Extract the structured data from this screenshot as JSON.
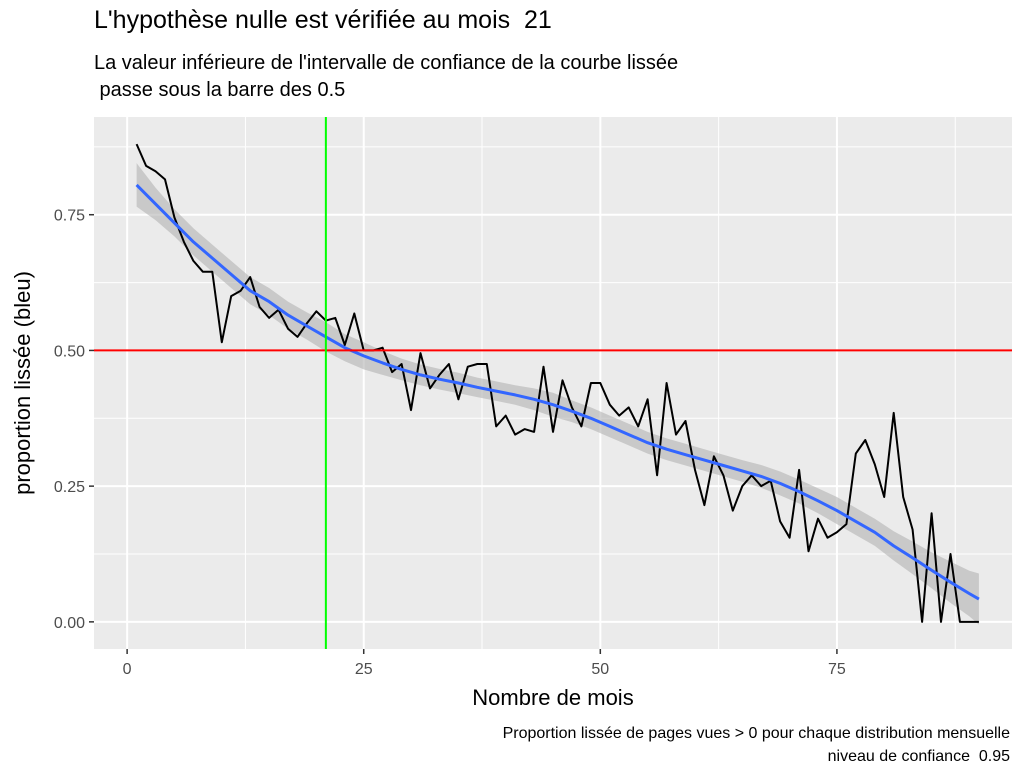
{
  "title": "L'hypothèse nulle est vérifiée au mois  21",
  "subtitle_line1": "La valeur inférieure de l'intervalle de confiance de la courbe lissée",
  "subtitle_line2": " passe sous la barre des 0.5",
  "caption_line1": "Proportion lissée de pages vues > 0 pour chaque distribution mensuelle",
  "caption_line2": "niveau de confiance  0.95",
  "colors": {
    "panel_bg": "#EBEBEB",
    "grid": "#FFFFFF",
    "raw_line": "#000000",
    "smooth_line": "#3366FF",
    "ribbon": "#B3B3B3",
    "hline": "#FF0000",
    "vline": "#00FF00",
    "tick_text": "#4D4D4D"
  },
  "chart_data": {
    "type": "line",
    "xlabel": "Nombre de mois",
    "ylabel": "proportion lissée (bleu)",
    "xlim": [
      -3.5,
      93.5
    ],
    "ylim": [
      -0.05,
      0.93
    ],
    "x_ticks": [
      0,
      25,
      50,
      75
    ],
    "y_ticks": [
      0,
      0.25,
      0.5,
      0.75
    ],
    "x_tick_labels": [
      "0",
      "25",
      "50",
      "75"
    ],
    "y_tick_labels": [
      "0.00",
      "0.25",
      "0.50",
      "0.75"
    ],
    "grid": true,
    "hline": 0.5,
    "vline": 21,
    "series": [
      {
        "kind": "raw",
        "x": [
          1,
          2,
          3,
          4,
          5,
          6,
          7,
          8,
          9,
          10,
          11,
          12,
          13,
          14,
          15,
          16,
          17,
          18,
          19,
          20,
          21,
          22,
          23,
          24,
          25,
          26,
          27,
          28,
          29,
          30,
          31,
          32,
          33,
          34,
          35,
          36,
          37,
          38,
          39,
          40,
          41,
          42,
          43,
          44,
          45,
          46,
          47,
          48,
          49,
          50,
          51,
          52,
          53,
          54,
          55,
          56,
          57,
          58,
          59,
          60,
          61,
          62,
          63,
          64,
          65,
          66,
          67,
          68,
          69,
          70,
          71,
          72,
          73,
          74,
          75,
          76,
          77,
          78,
          79,
          80,
          81,
          82,
          83,
          84,
          85,
          86,
          87,
          88,
          89,
          90
        ],
        "y": [
          0.88,
          0.84,
          0.83,
          0.815,
          0.745,
          0.7,
          0.665,
          0.645,
          0.645,
          0.515,
          0.6,
          0.61,
          0.635,
          0.58,
          0.56,
          0.575,
          0.54,
          0.525,
          0.55,
          0.572,
          0.555,
          0.56,
          0.51,
          0.568,
          0.5,
          0.5,
          0.505,
          0.46,
          0.475,
          0.39,
          0.495,
          0.43,
          0.455,
          0.475,
          0.41,
          0.47,
          0.475,
          0.475,
          0.36,
          0.38,
          0.345,
          0.355,
          0.35,
          0.47,
          0.35,
          0.445,
          0.395,
          0.36,
          0.44,
          0.44,
          0.4,
          0.38,
          0.395,
          0.36,
          0.41,
          0.27,
          0.44,
          0.345,
          0.37,
          0.28,
          0.215,
          0.305,
          0.27,
          0.205,
          0.25,
          0.27,
          0.25,
          0.26,
          0.185,
          0.155,
          0.28,
          0.13,
          0.19,
          0.155,
          0.165,
          0.18,
          0.31,
          0.335,
          0.29,
          0.23,
          0.385,
          0.23,
          0.17,
          0.0,
          0.2,
          0.0,
          0.125,
          0.0,
          0.0,
          0.0
        ]
      },
      {
        "kind": "smoothed",
        "x": [
          1,
          3,
          5,
          7,
          9,
          11,
          13,
          15,
          17,
          19,
          21,
          23,
          25,
          27,
          29,
          31,
          33,
          35,
          37,
          39,
          41,
          43,
          45,
          47,
          49,
          51,
          53,
          55,
          57,
          59,
          61,
          63,
          65,
          67,
          69,
          71,
          73,
          75,
          77,
          79,
          81,
          83,
          85,
          87,
          89,
          90
        ],
        "y": [
          0.805,
          0.77,
          0.735,
          0.7,
          0.67,
          0.64,
          0.61,
          0.59,
          0.565,
          0.545,
          0.525,
          0.505,
          0.49,
          0.477,
          0.465,
          0.455,
          0.447,
          0.44,
          0.432,
          0.425,
          0.418,
          0.41,
          0.4,
          0.388,
          0.375,
          0.36,
          0.345,
          0.33,
          0.318,
          0.308,
          0.298,
          0.288,
          0.278,
          0.268,
          0.255,
          0.24,
          0.223,
          0.205,
          0.185,
          0.165,
          0.14,
          0.118,
          0.095,
          0.073,
          0.052,
          0.042
        ],
        "lower": [
          0.765,
          0.74,
          0.71,
          0.675,
          0.645,
          0.615,
          0.585,
          0.565,
          0.54,
          0.52,
          0.498,
          0.48,
          0.465,
          0.455,
          0.445,
          0.436,
          0.428,
          0.421,
          0.414,
          0.407,
          0.4,
          0.39,
          0.378,
          0.368,
          0.355,
          0.34,
          0.325,
          0.31,
          0.298,
          0.288,
          0.278,
          0.268,
          0.258,
          0.247,
          0.233,
          0.218,
          0.2,
          0.18,
          0.16,
          0.14,
          0.113,
          0.088,
          0.062,
          0.035,
          0.01,
          -0.005
        ],
        "upper": [
          0.845,
          0.8,
          0.76,
          0.725,
          0.695,
          0.665,
          0.635,
          0.615,
          0.59,
          0.57,
          0.552,
          0.53,
          0.515,
          0.499,
          0.485,
          0.474,
          0.466,
          0.459,
          0.45,
          0.443,
          0.436,
          0.43,
          0.422,
          0.408,
          0.395,
          0.38,
          0.365,
          0.35,
          0.338,
          0.328,
          0.318,
          0.308,
          0.298,
          0.289,
          0.277,
          0.262,
          0.246,
          0.23,
          0.21,
          0.19,
          0.167,
          0.148,
          0.128,
          0.111,
          0.094,
          0.089
        ]
      }
    ]
  }
}
